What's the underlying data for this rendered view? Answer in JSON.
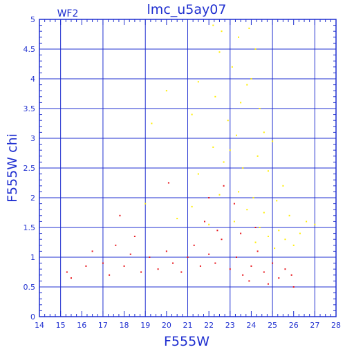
{
  "chart_data": {
    "type": "scatter",
    "title": "lmc_u5ay07",
    "chip_label": "WF2",
    "xlabel": "F555W",
    "ylabel": "F555W chi",
    "xlim": [
      14,
      28
    ],
    "ylim": [
      0,
      5
    ],
    "x_ticks": [
      14,
      15,
      16,
      17,
      18,
      19,
      20,
      21,
      22,
      23,
      24,
      25,
      26,
      27,
      28
    ],
    "y_ticks": [
      0,
      0.5,
      1,
      1.5,
      2,
      2.5,
      3,
      3.5,
      4,
      4.5,
      5
    ],
    "grid": true,
    "colors": {
      "axes": "#1f2fd0",
      "grid": "#1f2fd0",
      "red_points": "#e8141a",
      "yellow_points": "#ffee00"
    },
    "series": [
      {
        "color_name": "yellow",
        "points_sample": [
          [
            22.2,
            4.9
          ],
          [
            22.6,
            4.8
          ],
          [
            23.4,
            4.7
          ],
          [
            23.9,
            4.85
          ],
          [
            24.2,
            4.5
          ],
          [
            22.5,
            4.45
          ],
          [
            23.1,
            4.2
          ],
          [
            24.0,
            4.0
          ],
          [
            23.8,
            3.9
          ],
          [
            21.5,
            3.95
          ],
          [
            20.0,
            3.8
          ],
          [
            22.3,
            3.7
          ],
          [
            23.5,
            3.6
          ],
          [
            24.4,
            3.5
          ],
          [
            21.2,
            3.4
          ],
          [
            22.9,
            3.3
          ],
          [
            23.3,
            3.05
          ],
          [
            24.6,
            3.1
          ],
          [
            25.0,
            2.95
          ],
          [
            19.3,
            3.25
          ],
          [
            22.2,
            2.85
          ],
          [
            23.0,
            2.8
          ],
          [
            24.3,
            2.7
          ],
          [
            22.7,
            2.6
          ],
          [
            23.6,
            2.5
          ],
          [
            24.8,
            2.45
          ],
          [
            21.5,
            2.4
          ],
          [
            25.5,
            2.2
          ],
          [
            22.5,
            2.05
          ],
          [
            23.4,
            2.1
          ],
          [
            24.1,
            2.0
          ],
          [
            25.2,
            1.95
          ],
          [
            21.2,
            1.85
          ],
          [
            23.8,
            1.8
          ],
          [
            24.6,
            1.75
          ],
          [
            25.8,
            1.7
          ],
          [
            26.6,
            1.6
          ],
          [
            22.0,
            1.55
          ],
          [
            23.2,
            1.6
          ],
          [
            24.4,
            1.5
          ],
          [
            25.3,
            1.45
          ],
          [
            26.3,
            1.4
          ],
          [
            27.0,
            1.55
          ],
          [
            24.8,
            1.35
          ],
          [
            25.6,
            1.3
          ],
          [
            26.0,
            1.2
          ],
          [
            24.2,
            1.25
          ],
          [
            25.1,
            1.15
          ],
          [
            20.5,
            1.65
          ],
          [
            19.0,
            1.9
          ]
        ]
      },
      {
        "color_name": "red",
        "points_sample": [
          [
            15.3,
            0.75
          ],
          [
            15.5,
            0.65
          ],
          [
            16.2,
            0.85
          ],
          [
            16.5,
            1.1
          ],
          [
            17.0,
            0.9
          ],
          [
            17.3,
            0.7
          ],
          [
            17.6,
            1.2
          ],
          [
            18.0,
            0.85
          ],
          [
            18.3,
            1.05
          ],
          [
            18.8,
            0.75
          ],
          [
            19.2,
            1.0
          ],
          [
            19.6,
            0.8
          ],
          [
            20.0,
            1.1
          ],
          [
            20.3,
            0.9
          ],
          [
            20.7,
            0.75
          ],
          [
            21.0,
            1.0
          ],
          [
            21.3,
            1.2
          ],
          [
            21.6,
            0.85
          ],
          [
            22.0,
            1.05
          ],
          [
            22.3,
            0.9
          ],
          [
            22.6,
            1.3
          ],
          [
            23.0,
            0.8
          ],
          [
            23.3,
            1.0
          ],
          [
            23.6,
            0.7
          ],
          [
            24.0,
            0.85
          ],
          [
            24.3,
            1.1
          ],
          [
            24.6,
            0.75
          ],
          [
            25.0,
            0.9
          ],
          [
            25.3,
            0.65
          ],
          [
            25.6,
            0.8
          ],
          [
            25.9,
            0.7
          ],
          [
            26.0,
            0.5
          ],
          [
            24.8,
            0.55
          ],
          [
            23.9,
            0.6
          ],
          [
            22.4,
            1.45
          ],
          [
            21.8,
            1.6
          ],
          [
            23.2,
            1.9
          ],
          [
            22.7,
            2.2
          ],
          [
            23.5,
            1.4
          ],
          [
            24.2,
            1.5
          ],
          [
            18.5,
            1.35
          ],
          [
            17.8,
            1.7
          ],
          [
            20.1,
            2.25
          ],
          [
            22.0,
            2.0
          ]
        ]
      }
    ]
  }
}
